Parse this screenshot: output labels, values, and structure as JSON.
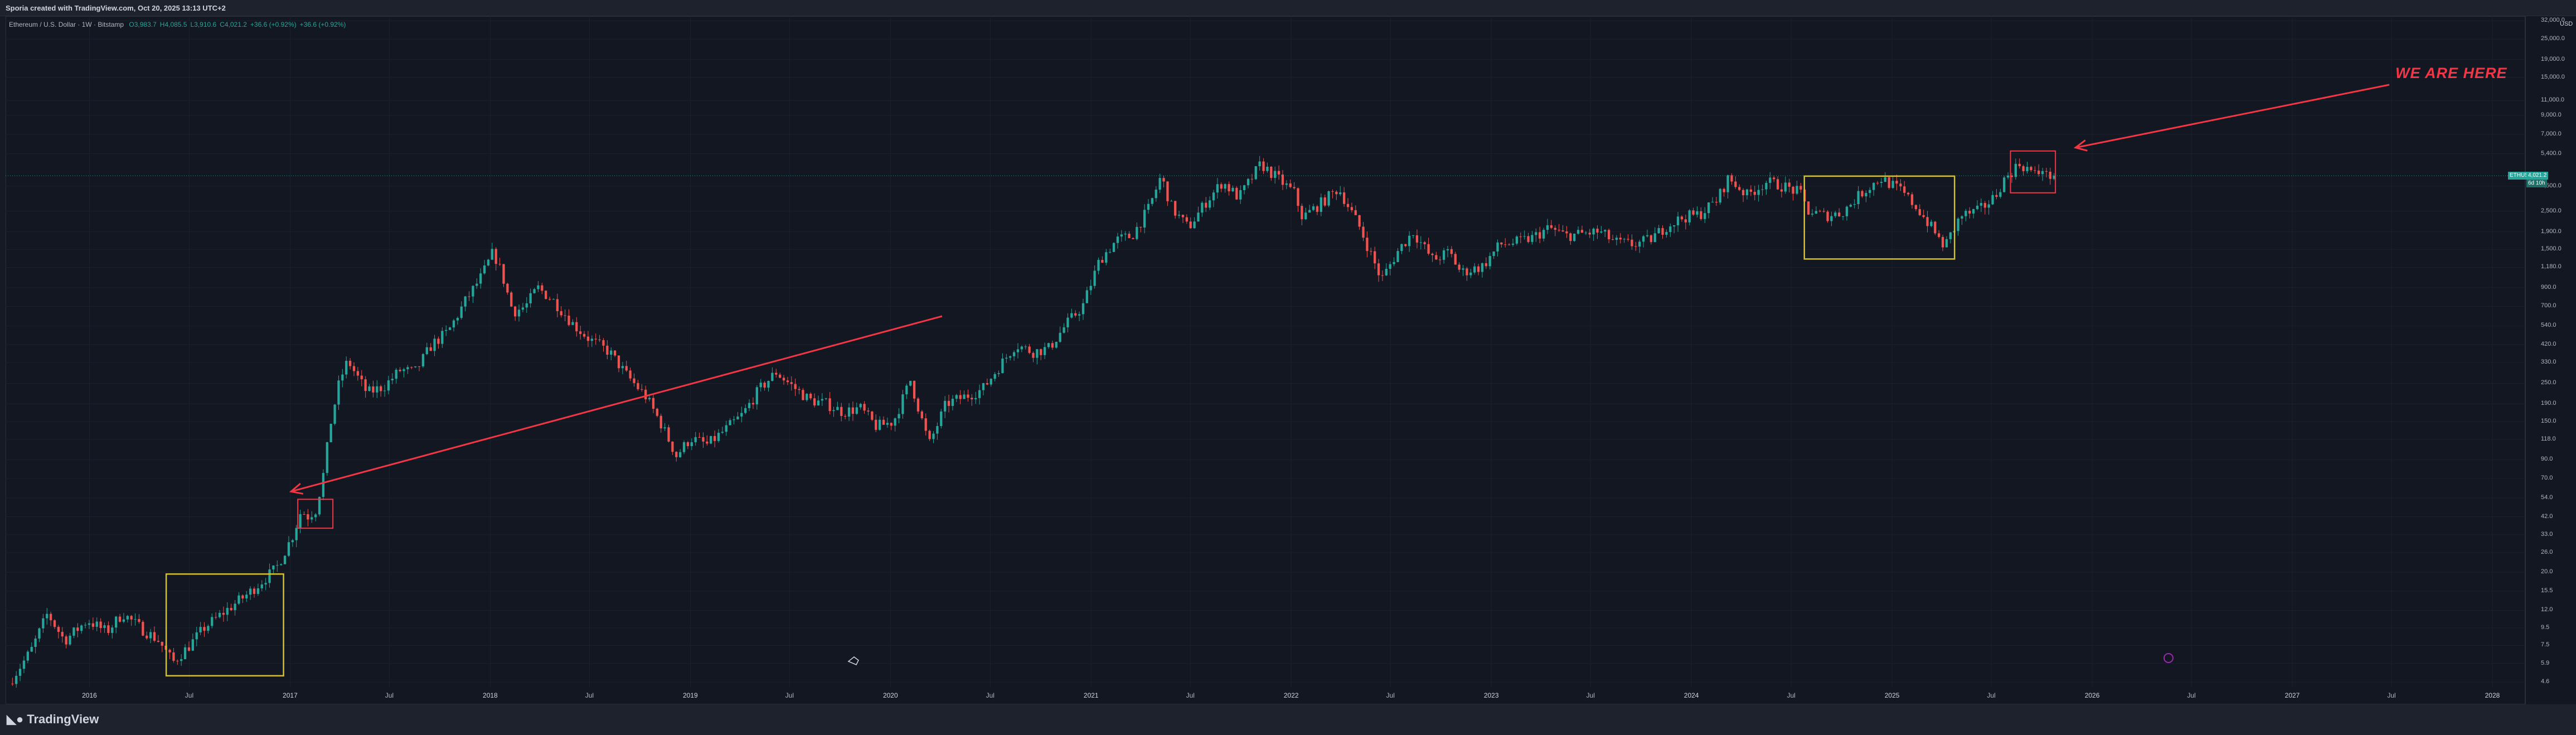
{
  "header": {
    "caption": "Sporia created with TradingView.com, Oct 20, 2025 13:13 UTC+2"
  },
  "legend": {
    "symbol": "Ethereum / U.S. Dollar · 1W · Bitstamp",
    "values": [
      "O3,983.7",
      "H4,085.5",
      "L3,910.6",
      "C4,021.2",
      "+36.6 (+0.92%)",
      "+36.6 (+0.92%)"
    ]
  },
  "currency": "USD",
  "y_axis_labels": [
    "32,000.0",
    "25,000.0",
    "19,000.0",
    "15,000.0",
    "11,000.0",
    "9,000.0",
    "7,000.0",
    "5,400.0",
    "3,500.0",
    "2,500.0",
    "1,900.0",
    "1,500.0",
    "1,180.0",
    "900.0",
    "700.0",
    "540.0",
    "420.0",
    "330.0",
    "250.0",
    "190.0",
    "150.0",
    "118.0",
    "90.0",
    "70.0",
    "54.0",
    "42.0",
    "33.0",
    "26.0",
    "20.0",
    "15.5",
    "12.0",
    "9.5",
    "7.5",
    "5.9",
    "4.6"
  ],
  "price_tags": {
    "symbol": "ETHUSD",
    "price": "4,021.2",
    "countdown": "6d 10h"
  },
  "x_axis_labels": [
    {
      "text": "2016",
      "year": true
    },
    {
      "text": "Jul",
      "year": false
    },
    {
      "text": "2017",
      "year": true
    },
    {
      "text": "Jul",
      "year": false
    },
    {
      "text": "2018",
      "year": true
    },
    {
      "text": "Jul",
      "year": false
    },
    {
      "text": "2019",
      "year": true
    },
    {
      "text": "Jul",
      "year": false
    },
    {
      "text": "2020",
      "year": true
    },
    {
      "text": "Jul",
      "year": false
    },
    {
      "text": "2021",
      "year": true
    },
    {
      "text": "Jul",
      "year": false
    },
    {
      "text": "2022",
      "year": true
    },
    {
      "text": "Jul",
      "year": false
    },
    {
      "text": "2023",
      "year": true
    },
    {
      "text": "Jul",
      "year": false
    },
    {
      "text": "2024",
      "year": true
    },
    {
      "text": "Jul",
      "year": false
    },
    {
      "text": "2025",
      "year": true
    },
    {
      "text": "Jul",
      "year": false
    },
    {
      "text": "2026",
      "year": true
    },
    {
      "text": "Jul",
      "year": false
    },
    {
      "text": "2027",
      "year": true
    },
    {
      "text": "Jul",
      "year": false
    },
    {
      "text": "2028",
      "year": true
    }
  ],
  "annotation": {
    "text": "WE ARE HERE"
  },
  "footer": {
    "logo": "TradingView"
  },
  "colors": {
    "up": "#26a69a",
    "down": "#ef5350",
    "highlight_box": "#d4c02a",
    "marker_box": "#f23645",
    "arrow": "#f23645"
  },
  "chart_data": {
    "type": "candlestick",
    "symbol": "ETHUSD",
    "interval": "1W",
    "y_scale": "log",
    "ylim": [
      4.3,
      34000
    ],
    "xlim": [
      "2015-08-01",
      "2028-03-01"
    ],
    "last_close": 4021.2,
    "price_path": [
      [
        "2015-08-10",
        4.5
      ],
      [
        "2015-09-20",
        7.0
      ],
      [
        "2015-10-20",
        11.5
      ],
      [
        "2015-11-20",
        8.0
      ],
      [
        "2016-01-01",
        10.5
      ],
      [
        "2016-02-05",
        9.0
      ],
      [
        "2016-03-05",
        11.5
      ],
      [
        "2016-04-10",
        9.3
      ],
      [
        "2016-05-10",
        8.0
      ],
      [
        "2016-06-05",
        6.0
      ],
      [
        "2016-07-05",
        7.5
      ],
      [
        "2016-08-01",
        9.5
      ],
      [
        "2016-09-10",
        12.0
      ],
      [
        "2016-10-20",
        15.0
      ],
      [
        "2016-12-10",
        21.0
      ],
      [
        "2017-01-10",
        33.0
      ],
      [
        "2017-01-25",
        46.0
      ],
      [
        "2017-02-05",
        42.0
      ],
      [
        "2017-02-20",
        46.0
      ],
      [
        "2017-03-05",
        70.0
      ],
      [
        "2017-03-20",
        150.0
      ],
      [
        "2017-04-05",
        260.0
      ],
      [
        "2017-04-20",
        340.0
      ],
      [
        "2017-05-05",
        280.0
      ],
      [
        "2017-05-25",
        220.0
      ],
      [
        "2017-06-25",
        240.0
      ],
      [
        "2017-07-25",
        300.0
      ],
      [
        "2017-08-20",
        290.0
      ],
      [
        "2017-09-20",
        420.0
      ],
      [
        "2017-10-20",
        500.0
      ],
      [
        "2017-11-20",
        750.0
      ],
      [
        "2017-12-20",
        1050.0
      ],
      [
        "2018-01-10",
        1450.0
      ],
      [
        "2018-01-25",
        1100.0
      ],
      [
        "2018-02-15",
        650.0
      ],
      [
        "2018-03-10",
        700.0
      ],
      [
        "2018-04-01",
        900.0
      ],
      [
        "2018-05-01",
        750.0
      ],
      [
        "2018-06-05",
        550.0
      ],
      [
        "2018-07-05",
        450.0
      ],
      [
        "2018-08-10",
        380.0
      ],
      [
        "2018-09-10",
        280.0
      ],
      [
        "2018-10-15",
        210.0
      ],
      [
        "2018-11-10",
        150.0
      ],
      [
        "2018-12-10",
        95.0
      ],
      [
        "2019-01-05",
        120.0
      ],
      [
        "2019-02-05",
        110.0
      ],
      [
        "2019-03-10",
        135.0
      ],
      [
        "2019-04-10",
        165.0
      ],
      [
        "2019-05-10",
        230.0
      ],
      [
        "2019-06-10",
        290.0
      ],
      [
        "2019-07-10",
        240.0
      ],
      [
        "2019-08-10",
        200.0
      ],
      [
        "2019-09-10",
        190.0
      ],
      [
        "2019-10-10",
        170.0
      ],
      [
        "2019-11-10",
        180.0
      ],
      [
        "2019-12-10",
        140.0
      ],
      [
        "2020-01-10",
        150.0
      ],
      [
        "2020-02-10",
        260.0
      ],
      [
        "2020-03-15",
        110.0
      ],
      [
        "2020-04-15",
        190.0
      ],
      [
        "2020-05-20",
        210.0
      ],
      [
        "2020-06-20",
        230.0
      ],
      [
        "2020-07-20",
        310.0
      ],
      [
        "2020-08-20",
        420.0
      ],
      [
        "2020-09-20",
        380.0
      ],
      [
        "2020-10-20",
        400.0
      ],
      [
        "2020-11-20",
        550.0
      ],
      [
        "2020-12-20",
        700.0
      ],
      [
        "2021-01-20",
        1300.0
      ],
      [
        "2021-02-20",
        1700.0
      ],
      [
        "2021-03-20",
        1800.0
      ],
      [
        "2021-04-20",
        2600.0
      ],
      [
        "2021-05-12",
        4000.0
      ],
      [
        "2021-06-01",
        2600.0
      ],
      [
        "2021-07-01",
        2000.0
      ],
      [
        "2021-08-01",
        2800.0
      ],
      [
        "2021-09-01",
        3700.0
      ],
      [
        "2021-10-01",
        3000.0
      ],
      [
        "2021-11-10",
        4700.0
      ],
      [
        "2021-12-10",
        3900.0
      ],
      [
        "2022-01-10",
        3200.0
      ],
      [
        "2022-01-25",
        2300.0
      ],
      [
        "2022-03-01",
        2800.0
      ],
      [
        "2022-04-01",
        3400.0
      ],
      [
        "2022-05-10",
        2000.0
      ],
      [
        "2022-06-18",
        1000.0
      ],
      [
        "2022-07-20",
        1500.0
      ],
      [
        "2022-08-15",
        1900.0
      ],
      [
        "2022-09-20",
        1300.0
      ],
      [
        "2022-10-20",
        1450.0
      ],
      [
        "2022-11-10",
        1100.0
      ],
      [
        "2022-12-20",
        1200.0
      ],
      [
        "2023-01-20",
        1600.0
      ],
      [
        "2023-02-20",
        1650.0
      ],
      [
        "2023-03-20",
        1750.0
      ],
      [
        "2023-04-20",
        2000.0
      ],
      [
        "2023-05-20",
        1800.0
      ],
      [
        "2023-06-20",
        1850.0
      ],
      [
        "2023-07-20",
        1900.0
      ],
      [
        "2023-08-20",
        1650.0
      ],
      [
        "2023-09-20",
        1600.0
      ],
      [
        "2023-10-20",
        1700.0
      ],
      [
        "2023-11-20",
        2050.0
      ],
      [
        "2023-12-20",
        2300.0
      ],
      [
        "2024-01-20",
        2400.0
      ],
      [
        "2024-02-20",
        2900.0
      ],
      [
        "2024-03-12",
        3900.0
      ],
      [
        "2024-04-15",
        3100.0
      ],
      [
        "2024-05-20",
        3700.0
      ],
      [
        "2024-06-20",
        3500.0
      ],
      [
        "2024-07-20",
        3200.0
      ],
      [
        "2024-08-05",
        2500.0
      ],
      [
        "2024-09-05",
        2350.0
      ],
      [
        "2024-10-05",
        2450.0
      ],
      [
        "2024-11-10",
        3200.0
      ],
      [
        "2024-12-15",
        3900.0
      ],
      [
        "2025-01-20",
        3300.0
      ],
      [
        "2025-02-20",
        2600.0
      ],
      [
        "2025-03-20",
        1950.0
      ],
      [
        "2025-04-10",
        1550.0
      ],
      [
        "2025-05-10",
        2350.0
      ],
      [
        "2025-06-10",
        2500.0
      ],
      [
        "2025-07-10",
        3000.0
      ],
      [
        "2025-07-25",
        3700.0
      ],
      [
        "2025-08-15",
        4400.0
      ],
      [
        "2025-08-25",
        4700.0
      ],
      [
        "2025-09-10",
        4400.0
      ],
      [
        "2025-09-25",
        4000.0
      ],
      [
        "2025-10-06",
        4500.0
      ],
      [
        "2025-10-13",
        3985.0
      ],
      [
        "2025-10-20",
        4021.2
      ]
    ],
    "highlight_boxes": [
      {
        "x": [
          "2016-05-20",
          "2016-12-20"
        ],
        "y": [
          5.0,
          19.5
        ]
      },
      {
        "x": [
          "2024-07-25",
          "2025-04-25"
        ],
        "y": [
          1320.0,
          4000.0
        ]
      }
    ],
    "marker_boxes": [
      {
        "x": [
          "2017-01-15",
          "2017-03-20"
        ],
        "y": [
          36.0,
          53.0
        ]
      },
      {
        "x": [
          "2025-08-05",
          "2025-10-26"
        ],
        "y": [
          3200.0,
          5600.0
        ]
      }
    ]
  }
}
